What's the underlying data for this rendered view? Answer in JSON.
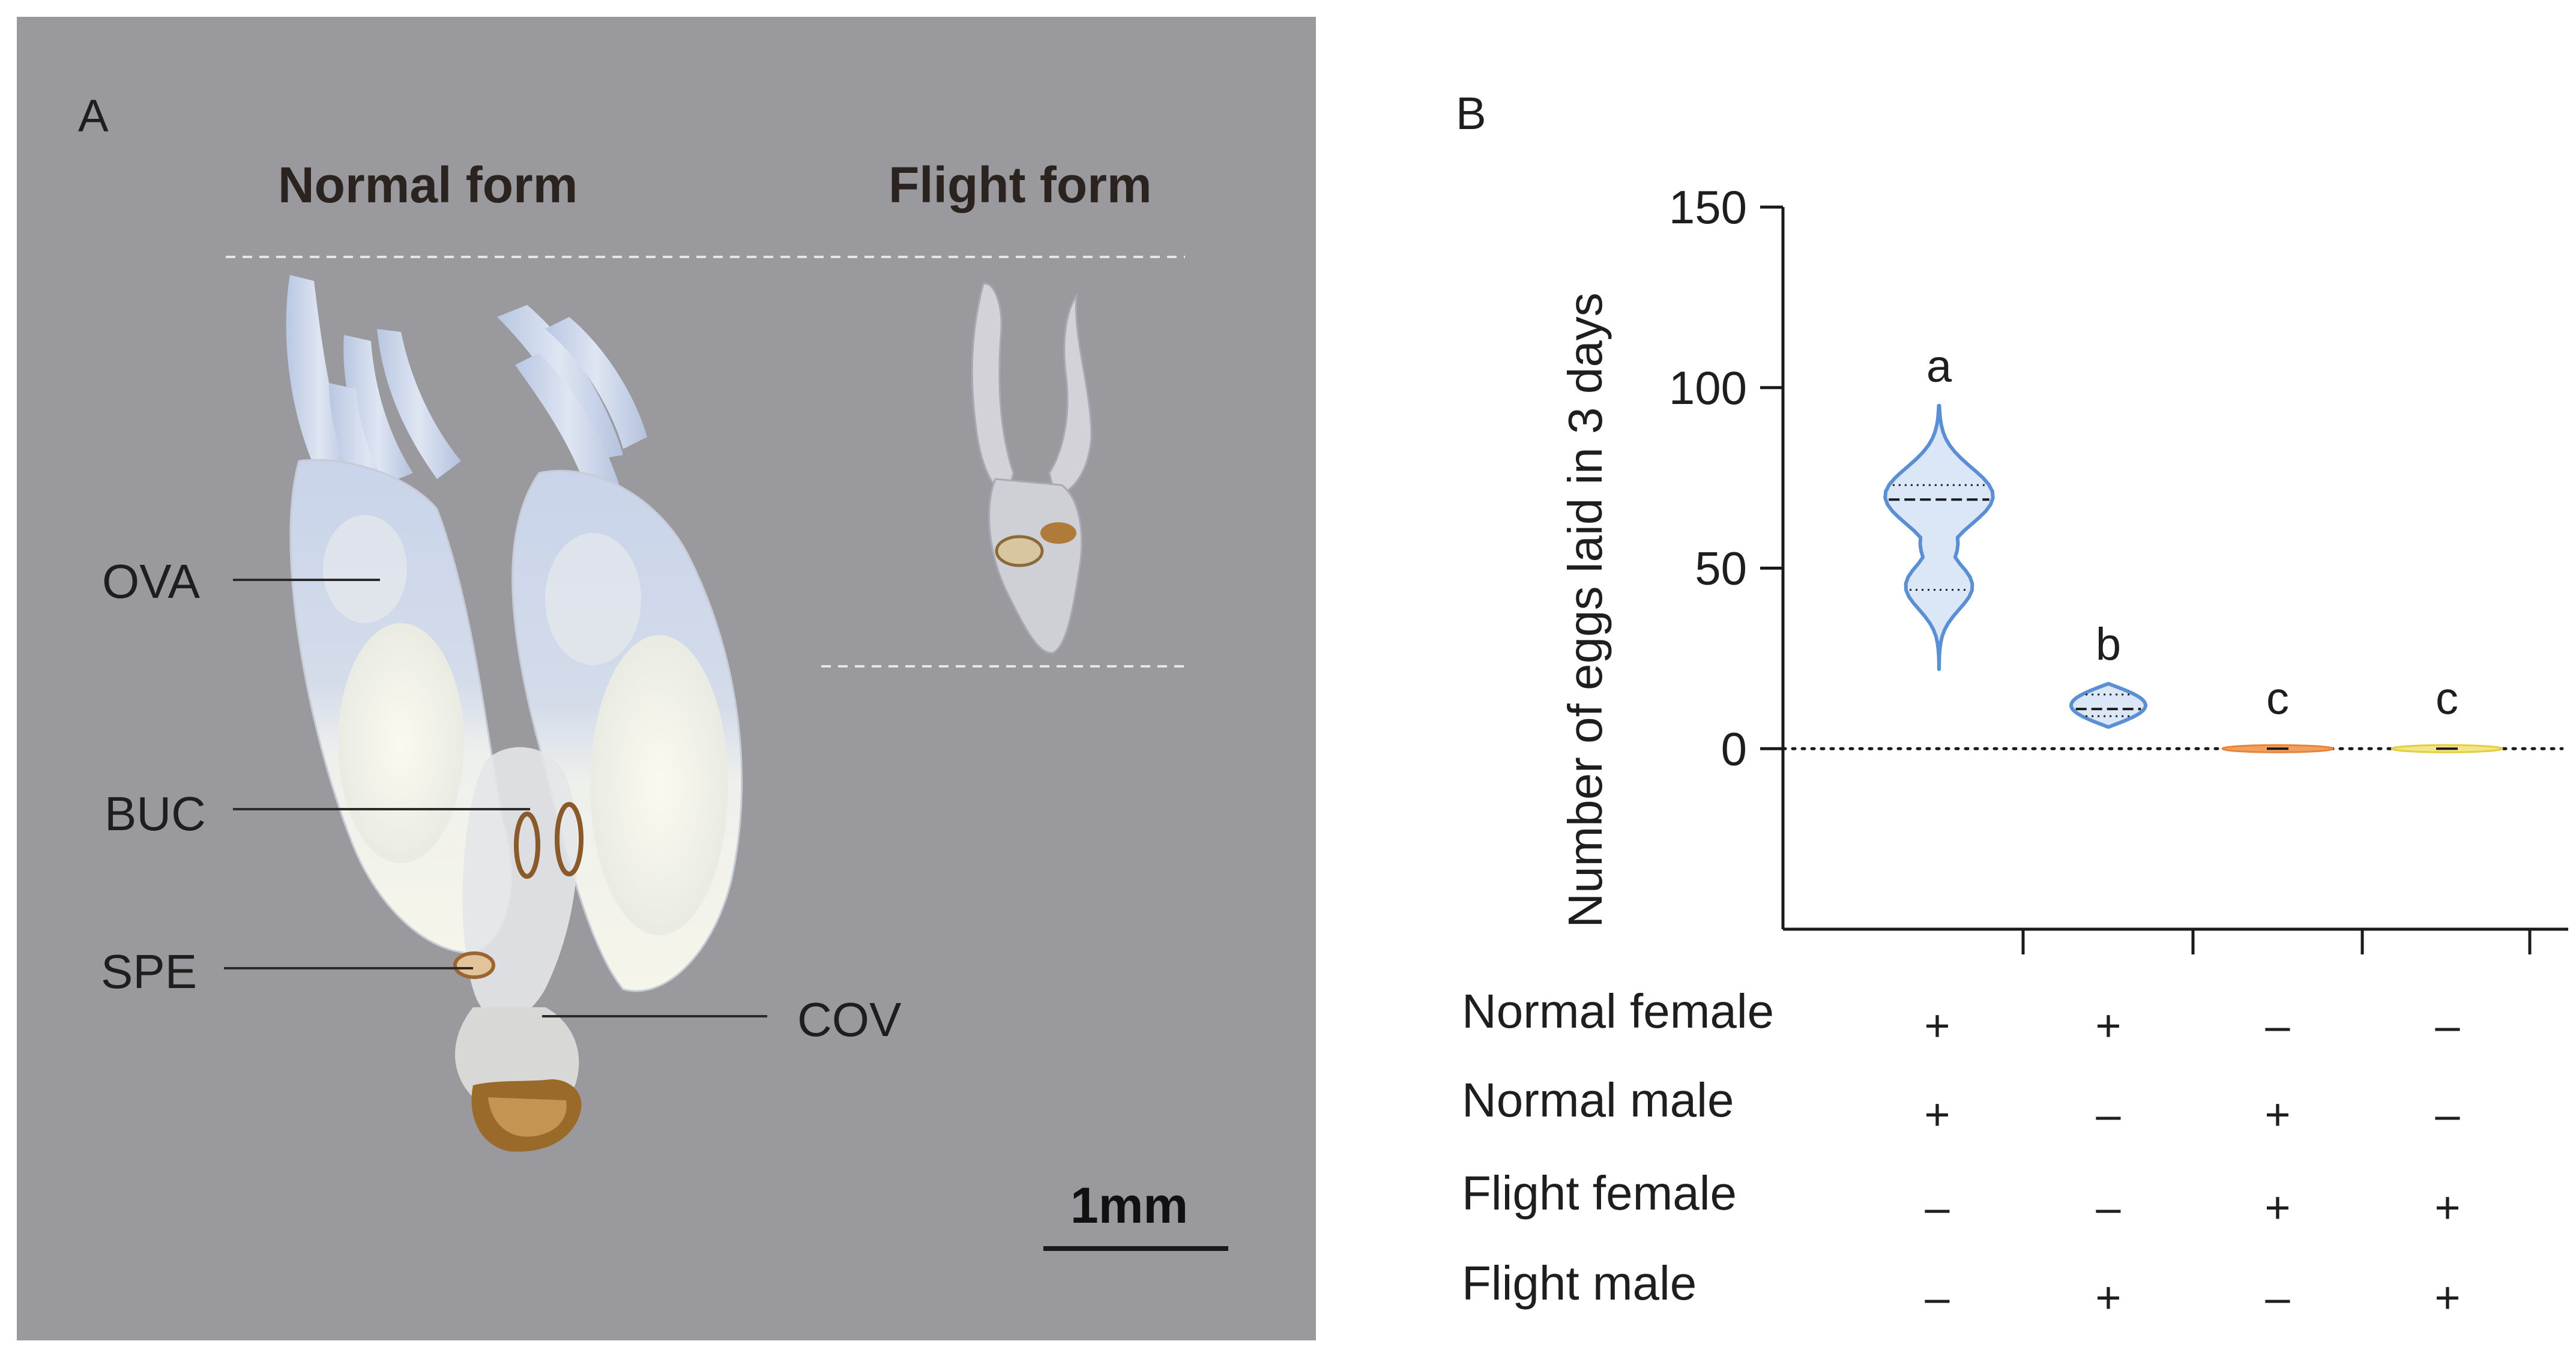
{
  "figure": {
    "panel_a": {
      "letter": "A",
      "normal_form_title": "Normal form",
      "flight_form_title": "Flight form",
      "organ_labels": {
        "ova": "OVA",
        "buc": "BUC",
        "spe": "SPE",
        "cov": "COV"
      },
      "scale_bar": "1mm"
    },
    "panel_b": {
      "letter": "B",
      "rows": [
        {
          "label": "Normal female",
          "marks": [
            "+",
            "+",
            "–",
            "–"
          ]
        },
        {
          "label": "Normal male",
          "marks": [
            "+",
            "–",
            "+",
            "–"
          ]
        },
        {
          "label": "Flight female",
          "marks": [
            "–",
            "–",
            "+",
            "+"
          ]
        },
        {
          "label": "Flight male",
          "marks": [
            "–",
            "+",
            "–",
            "+"
          ]
        }
      ]
    }
  },
  "chart_data": {
    "type": "violin",
    "title": "",
    "xlabel": "",
    "ylabel": "Number of eggs laid in 3 days",
    "ylim": [
      -50,
      150
    ],
    "yticks": [
      0,
      50,
      100,
      150
    ],
    "reference_line": 0,
    "groups": [
      {
        "index": 1,
        "significance": "a",
        "min": 22,
        "max": 95,
        "q1": 44,
        "median": 69,
        "q3": 73,
        "color": "#5b8fd3",
        "fill": "#dbe7f7"
      },
      {
        "index": 2,
        "significance": "b",
        "min": 6,
        "max": 18,
        "q1": 9,
        "median": 11,
        "q3": 15,
        "color": "#5b8fd3",
        "fill": "#dbe7f7"
      },
      {
        "index": 3,
        "significance": "c",
        "min": -1,
        "max": 1,
        "q1": 0,
        "median": 0,
        "q3": 0,
        "color": "#e8833a",
        "fill": "#f1a060"
      },
      {
        "index": 4,
        "significance": "c",
        "min": -0.5,
        "max": 0.5,
        "q1": 0,
        "median": 0,
        "q3": 0,
        "color": "#e3cf3c",
        "fill": "#f3e58a"
      }
    ]
  }
}
